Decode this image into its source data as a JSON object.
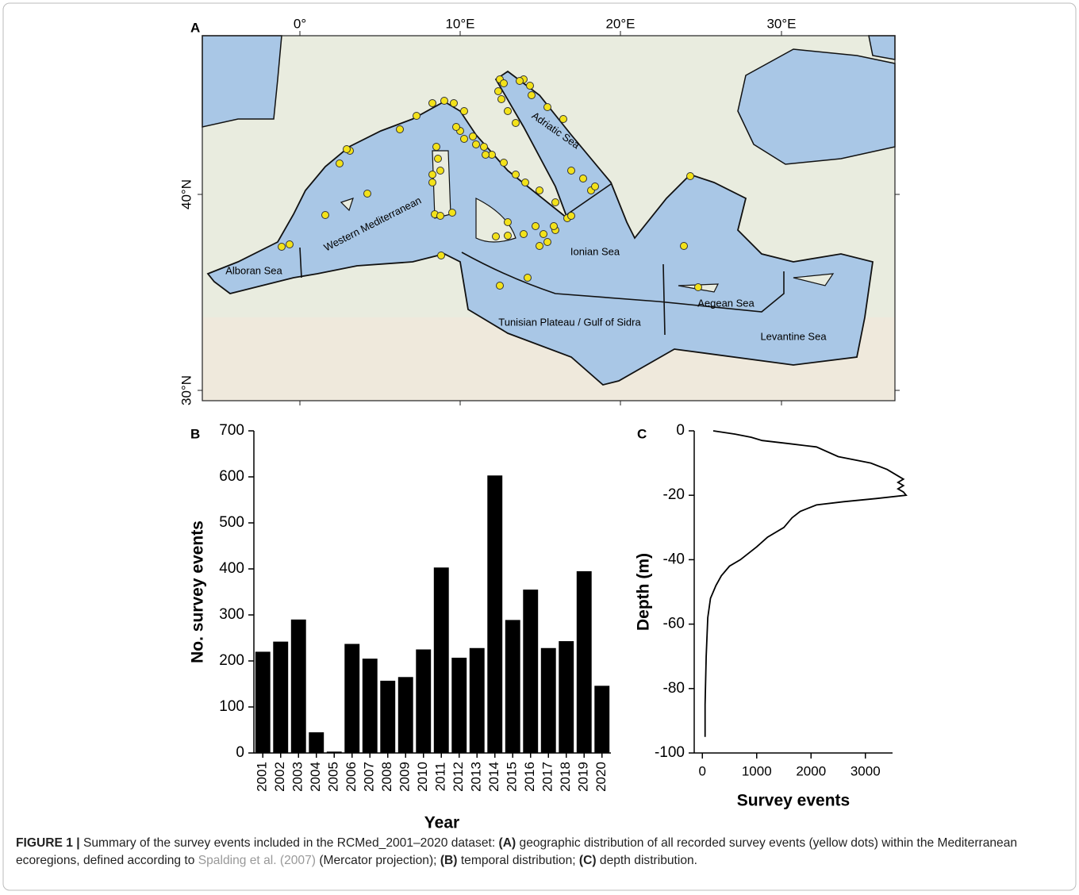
{
  "map": {
    "label": "A",
    "lon_labels": [
      "0°",
      "10°E",
      "20°E",
      "30°E"
    ],
    "lat_labels": [
      "40°N",
      "30°N"
    ],
    "regions": [
      "Alboran Sea",
      "Western Mediterranean",
      "Adriatic Sea",
      "Ionian Sea",
      "Aegean Sea",
      "Tunisian Plateau / Gulf of Sidra",
      "Levantine Sea"
    ]
  },
  "chart_data": [
    {
      "type": "bar",
      "label": "B",
      "y_label": "No. survey events",
      "x_label": "Year",
      "color": "#000000",
      "categories": [
        "2001",
        "2002",
        "2003",
        "2004",
        "2005",
        "2006",
        "2007",
        "2008",
        "2009",
        "2010",
        "2011",
        "2012",
        "2013",
        "2014",
        "2015",
        "2016",
        "2017",
        "2018",
        "2019",
        "2020"
      ],
      "values": [
        220,
        242,
        290,
        45,
        3,
        237,
        205,
        157,
        165,
        225,
        403,
        207,
        228,
        603,
        289,
        355,
        228,
        243,
        395,
        146
      ],
      "ylim": [
        0,
        700
      ],
      "yticks": [
        0,
        100,
        200,
        300,
        400,
        500,
        600,
        700
      ]
    },
    {
      "type": "line",
      "label": "C",
      "y_label": "Depth (m)",
      "x_label": "Survey events",
      "color": "#000000",
      "x": [
        200,
        600,
        900,
        1100,
        1600,
        2100,
        2500,
        3100,
        3400,
        3600,
        3700,
        3600,
        3700,
        3600,
        3700,
        3750,
        3200,
        2600,
        2100,
        1800,
        1650,
        1500,
        1200,
        1000,
        700,
        500,
        350,
        250,
        150,
        100,
        70,
        50,
        50
      ],
      "values": [
        0,
        -1,
        -2,
        -3,
        -4,
        -5,
        -8,
        -10,
        -12,
        -14,
        -15,
        -16,
        -17,
        -18,
        -19,
        -20,
        -21,
        -22,
        -23,
        -25,
        -27,
        -30,
        -33,
        -36,
        -40,
        -42,
        -45,
        -48,
        -52,
        -58,
        -70,
        -85,
        -95
      ],
      "xlim": [
        -150,
        3500
      ],
      "xticks": [
        0,
        1000,
        2000,
        3000
      ],
      "ylim": [
        -100,
        0
      ],
      "yticks": [
        0,
        -20,
        -40,
        -60,
        -80,
        -100
      ]
    }
  ],
  "caption": {
    "segments": [
      {
        "text": "FIGURE 1 |",
        "style": "bold"
      },
      {
        "text": " Summary of the survey events included in the RCMed_2001–2020 dataset: ",
        "style": "normal"
      },
      {
        "text": "(A)",
        "style": "bold"
      },
      {
        "text": " geographic distribution of all recorded survey events (yellow dots) within the Mediterranean ecoregions, defined according to ",
        "style": "normal"
      },
      {
        "text": "Spalding et al. (2007)",
        "style": "link"
      },
      {
        "text": " (Mercator projection); ",
        "style": "normal"
      },
      {
        "text": "(B)",
        "style": "bold"
      },
      {
        "text": " temporal distribution; ",
        "style": "normal"
      },
      {
        "text": "(C)",
        "style": "bold"
      },
      {
        "text": " depth distribution.",
        "style": "normal"
      }
    ]
  }
}
